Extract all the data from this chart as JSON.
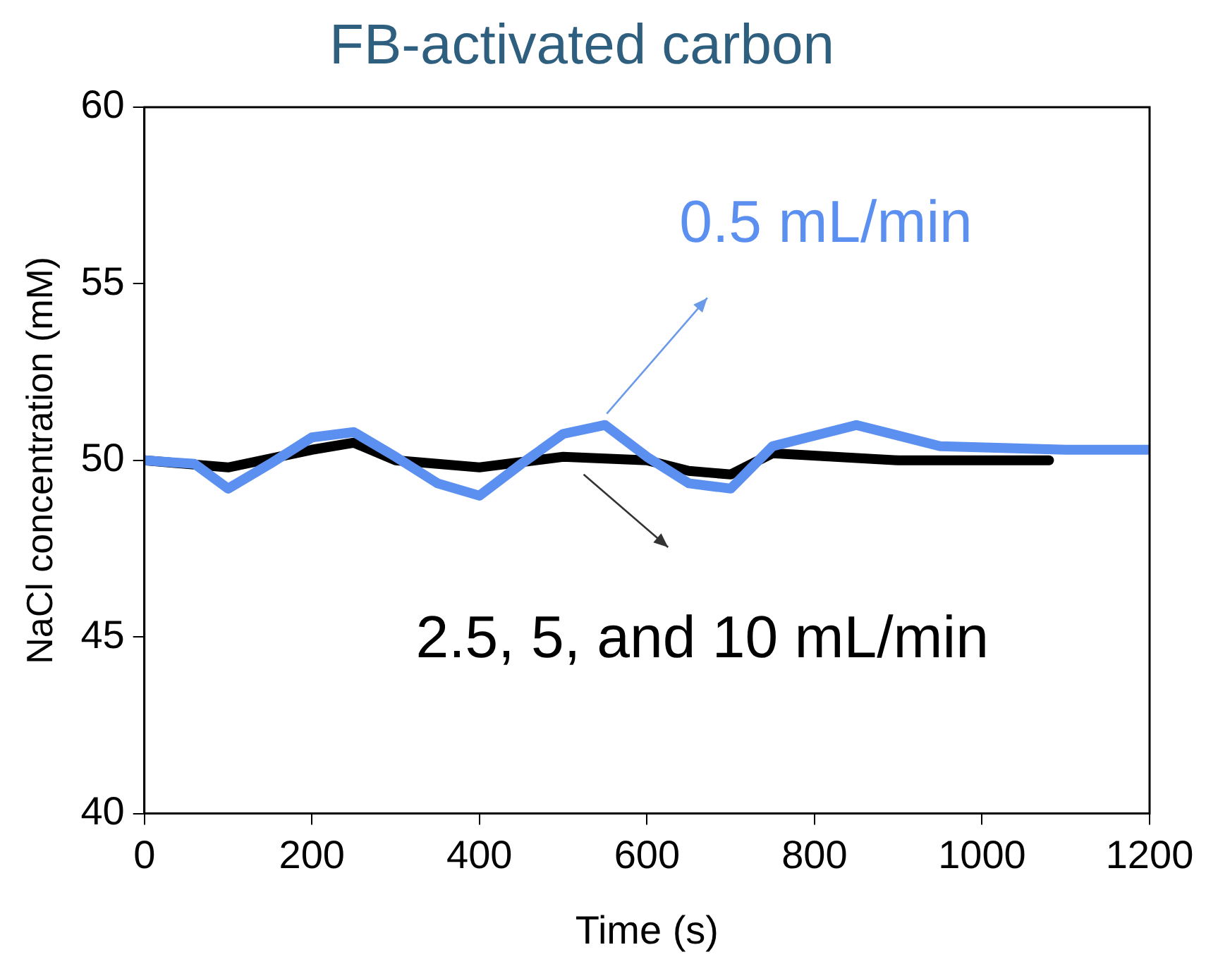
{
  "chart_data": {
    "type": "line",
    "title": "FB-activated carbon",
    "xlabel": "Time (s)",
    "ylabel": "NaCl concentration (mM)",
    "xlim": [
      0,
      1200
    ],
    "xticks": [
      0,
      200,
      400,
      600,
      800,
      1000,
      1200
    ],
    "ylim": [
      40,
      60
    ],
    "yticks": [
      40,
      45,
      50,
      55,
      60
    ],
    "legend": false,
    "marker": "none",
    "series": [
      {
        "color": "#5b8ff0",
        "x": [
          0,
          60,
          100,
          150,
          200,
          250,
          300,
          350,
          400,
          450,
          500,
          550,
          600,
          650,
          700,
          750,
          850,
          950,
          1100,
          1200
        ],
        "values": [
          50.0,
          49.9,
          49.2,
          49.9,
          50.65,
          50.8,
          50.1,
          49.35,
          49.0,
          49.9,
          50.75,
          51.0,
          50.1,
          49.35,
          49.2,
          50.4,
          51.0,
          50.4,
          50.3,
          50.3
        ]
      },
      {
        "color": "#000000",
        "x": [
          0,
          100,
          200,
          250,
          300,
          400,
          500,
          600,
          650,
          700,
          750,
          900,
          1080
        ],
        "values": [
          50.0,
          49.8,
          50.3,
          50.5,
          50.0,
          49.8,
          50.1,
          50.0,
          49.7,
          49.6,
          50.2,
          50.0,
          50.0
        ]
      }
    ],
    "annotations": [
      "0.5 mL/min",
      "2.5, 5, and 10 mL/min"
    ]
  }
}
